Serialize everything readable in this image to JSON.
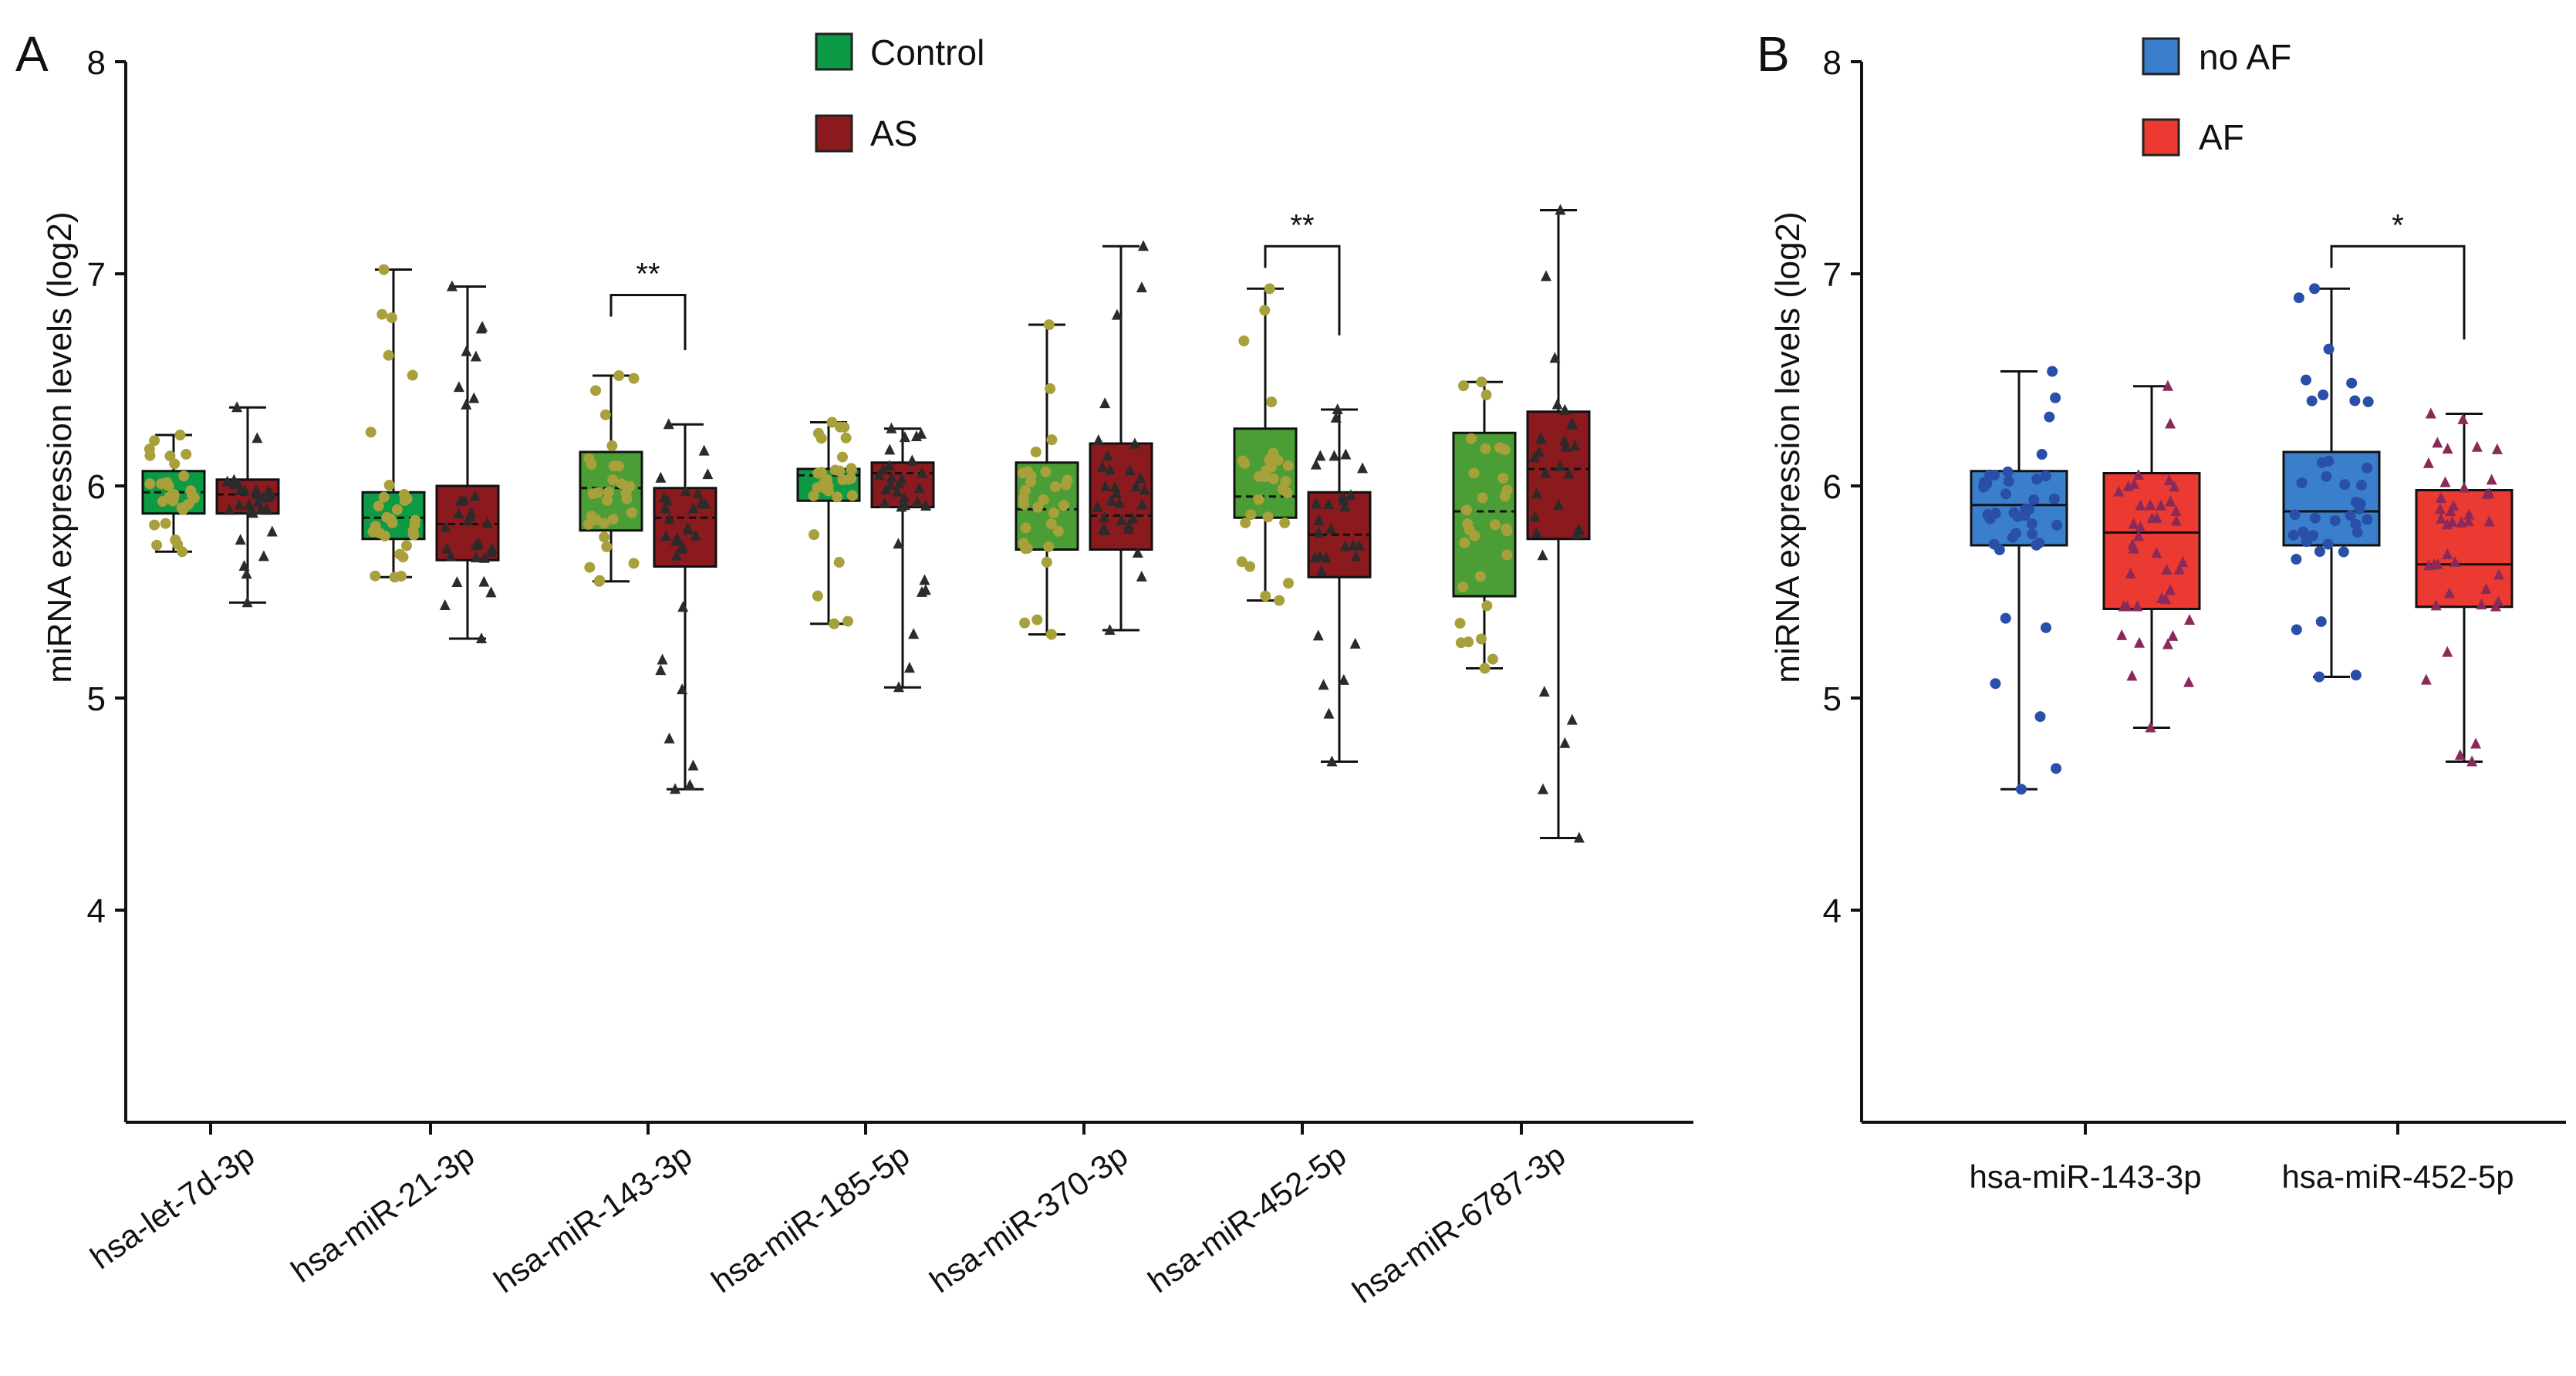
{
  "chart_data": [
    {
      "panel_label": "A",
      "type": "box",
      "ylabel": "miRNA expression levels (log2)",
      "ylim": [
        3,
        8
      ],
      "yticks": [
        4,
        5,
        6,
        7,
        8
      ],
      "categories": [
        "hsa-let-7d-3p",
        "hsa-miR-21-3p",
        "hsa-miR-143-3p",
        "hsa-miR-185-5p",
        "hsa-miR-370-3p",
        "hsa-miR-452-5p",
        "hsa-miR-6787-3p"
      ],
      "legend": [
        {
          "name": "Control",
          "color": "#0c9a45"
        },
        {
          "name": "AS",
          "color": "#8b1a1f"
        }
      ],
      "series": [
        {
          "name": "Control",
          "box_colors": [
            "#0c9a45",
            "#0c9a45",
            "#4b9e36",
            "#0c9a45",
            "#4b9e36",
            "#4b9e36",
            "#4b9e36"
          ],
          "point_color": "#a8a03a",
          "boxes": [
            {
              "whisker_low": 5.69,
              "q1": 5.87,
              "median": 5.97,
              "q3": 6.07,
              "whisker_high": 6.24
            },
            {
              "whisker_low": 5.57,
              "q1": 5.75,
              "median": 5.85,
              "q3": 5.97,
              "whisker_high": 7.02
            },
            {
              "whisker_low": 5.55,
              "q1": 5.79,
              "median": 5.99,
              "q3": 6.16,
              "whisker_high": 6.52
            },
            {
              "whisker_low": 5.35,
              "q1": 5.93,
              "median": 6.05,
              "q3": 6.08,
              "whisker_high": 6.3
            },
            {
              "whisker_low": 5.3,
              "q1": 5.7,
              "median": 5.89,
              "q3": 6.11,
              "whisker_high": 6.76
            },
            {
              "whisker_low": 5.46,
              "q1": 5.85,
              "median": 5.95,
              "q3": 6.27,
              "whisker_high": 6.93
            },
            {
              "whisker_low": 5.14,
              "q1": 5.48,
              "median": 5.88,
              "q3": 6.25,
              "whisker_high": 6.49
            }
          ]
        },
        {
          "name": "AS",
          "box_colors": [
            "#8b1a1f",
            "#8b1a1f",
            "#8b1a1f",
            "#8b1a1f",
            "#8b1a1f",
            "#8b1a1f",
            "#8b1a1f"
          ],
          "point_color": "#2b2b2b",
          "boxes": [
            {
              "whisker_low": 5.45,
              "q1": 5.87,
              "median": 5.96,
              "q3": 6.03,
              "whisker_high": 6.37
            },
            {
              "whisker_low": 5.28,
              "q1": 5.65,
              "median": 5.82,
              "q3": 6.0,
              "whisker_high": 6.94
            },
            {
              "whisker_low": 4.57,
              "q1": 5.62,
              "median": 5.85,
              "q3": 5.99,
              "whisker_high": 6.29
            },
            {
              "whisker_low": 5.05,
              "q1": 5.9,
              "median": 6.06,
              "q3": 6.11,
              "whisker_high": 6.27
            },
            {
              "whisker_low": 5.32,
              "q1": 5.7,
              "median": 5.86,
              "q3": 6.2,
              "whisker_high": 7.13
            },
            {
              "whisker_low": 4.7,
              "q1": 5.57,
              "median": 5.77,
              "q3": 5.97,
              "whisker_high": 6.36
            },
            {
              "whisker_low": 4.34,
              "q1": 5.75,
              "median": 6.08,
              "q3": 6.35,
              "whisker_high": 7.3
            }
          ]
        }
      ],
      "significance": [
        {
          "category_index": 2,
          "label": "**",
          "y": 6.9
        },
        {
          "category_index": 5,
          "label": "**",
          "y": 7.13
        }
      ]
    },
    {
      "panel_label": "B",
      "type": "box",
      "ylabel": "miRNA expression levels (log2)",
      "ylim": [
        3,
        8
      ],
      "yticks": [
        4,
        5,
        6,
        7,
        8
      ],
      "categories": [
        "hsa-miR-143-3p",
        "hsa-miR-452-5p"
      ],
      "legend": [
        {
          "name": "no AF",
          "color": "#3a7fcc"
        },
        {
          "name": "AF",
          "color": "#ea3a32"
        }
      ],
      "series": [
        {
          "name": "no AF",
          "box_colors": [
            "#3a7fcc",
            "#3a7fcc"
          ],
          "point_color": "#2a4fa8",
          "boxes": [
            {
              "whisker_low": 4.57,
              "q1": 5.72,
              "median": 5.91,
              "q3": 6.07,
              "whisker_high": 6.54
            },
            {
              "whisker_low": 5.1,
              "q1": 5.72,
              "median": 5.88,
              "q3": 6.16,
              "whisker_high": 6.93
            }
          ]
        },
        {
          "name": "AF",
          "box_colors": [
            "#ea3a32",
            "#ea3a32"
          ],
          "point_color": "#8a2a5a",
          "boxes": [
            {
              "whisker_low": 4.86,
              "q1": 5.42,
              "median": 5.78,
              "q3": 6.06,
              "whisker_high": 6.47
            },
            {
              "whisker_low": 4.7,
              "q1": 5.43,
              "median": 5.63,
              "q3": 5.98,
              "whisker_high": 6.34
            }
          ]
        }
      ],
      "significance": [
        {
          "category_index": 1,
          "label": "*",
          "y": 7.13
        }
      ]
    }
  ]
}
